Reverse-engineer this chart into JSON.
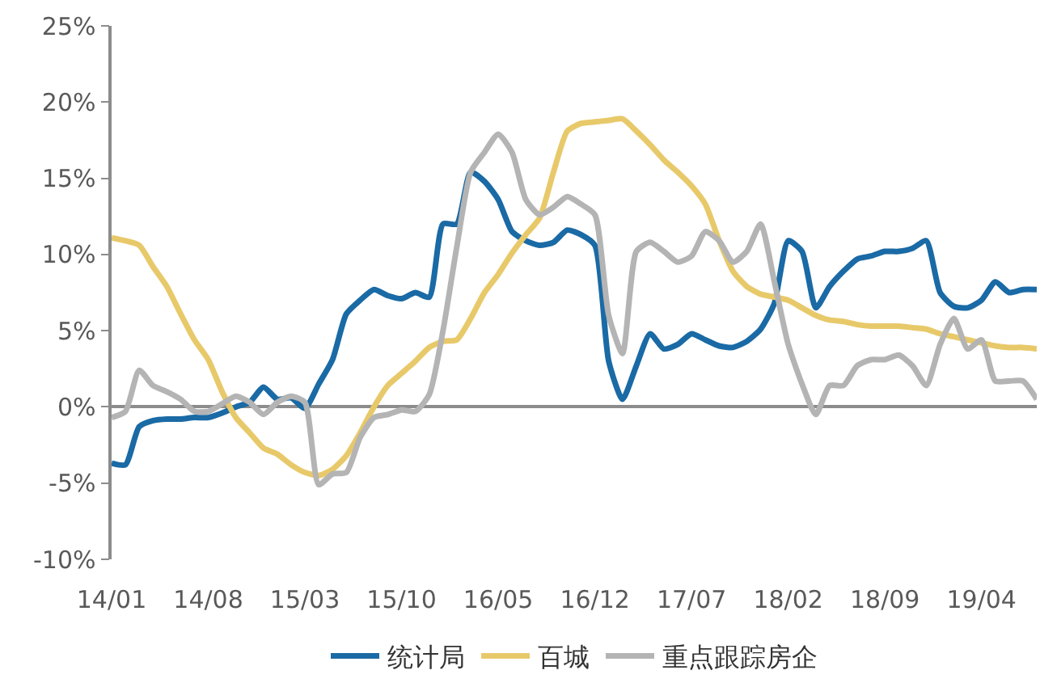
{
  "chart_data": {
    "type": "line",
    "categories": [
      "14/01",
      null,
      null,
      null,
      null,
      null,
      null,
      "14/08",
      null,
      null,
      null,
      null,
      null,
      null,
      "15/03",
      null,
      null,
      null,
      null,
      null,
      null,
      "15/10",
      null,
      null,
      null,
      null,
      null,
      null,
      "16/05",
      null,
      null,
      null,
      null,
      null,
      null,
      "16/12",
      null,
      null,
      null,
      null,
      null,
      null,
      "17/07",
      null,
      null,
      null,
      null,
      null,
      null,
      "18/02",
      null,
      null,
      null,
      null,
      null,
      null,
      "18/09",
      null,
      null,
      null,
      null,
      null,
      null,
      "19/04",
      null,
      null,
      null,
      null
    ],
    "series": [
      {
        "name": "统计局",
        "color": "#1a6aa5",
        "values": [
          -3.7,
          -3.8,
          -1.3,
          -0.9,
          -0.8,
          -0.8,
          -0.7,
          -0.7,
          -0.4,
          0,
          0.3,
          1.3,
          0.5,
          0.6,
          -0.1,
          1.5,
          3.1,
          6.1,
          7.0,
          7.7,
          7.3,
          7.1,
          7.5,
          7.2,
          12.0,
          12.0,
          15.4,
          14.8,
          13.6,
          11.5,
          10.9,
          10.6,
          10.8,
          11.6,
          11.3,
          10.6,
          3.0,
          0.5,
          2.7,
          4.8,
          3.8,
          4.1,
          4.8,
          4.4,
          4.0,
          3.9,
          4.3,
          5.1,
          6.8,
          10.9,
          10.2,
          6.5,
          7.9,
          8.9,
          9.7,
          9.9,
          10.2,
          10.2,
          10.4,
          10.9,
          7.5,
          6.6,
          6.5,
          7.0,
          8.2,
          7.5,
          7.7,
          7.7
        ]
      },
      {
        "name": "百城",
        "color": "#e8c96a",
        "values": [
          11.1,
          10.9,
          10.6,
          9.2,
          7.9,
          6.1,
          4.4,
          3.1,
          1.0,
          -0.7,
          -1.7,
          -2.7,
          -3.1,
          -3.8,
          -4.3,
          -4.5,
          -4.1,
          -3.2,
          -1.7,
          0,
          1.4,
          2.2,
          3.0,
          3.9,
          4.3,
          4.4,
          5.8,
          7.5,
          8.7,
          10.1,
          11.3,
          12.4,
          15.4,
          18.1,
          18.6,
          18.7,
          18.8,
          18.9,
          18.1,
          17.2,
          16.2,
          15.4,
          14.5,
          13.3,
          10.9,
          8.9,
          7.9,
          7.4,
          7.2,
          7.0,
          6.5,
          6.0,
          5.7,
          5.6,
          5.4,
          5.3,
          5.3,
          5.3,
          5.2,
          5.1,
          4.8,
          4.6,
          4.4,
          4.2,
          4.0,
          3.9,
          3.9,
          3.8
        ]
      },
      {
        "name": "重点跟踪房企",
        "color": "#b4b4b4",
        "values": [
          -0.7,
          -0.3,
          2.4,
          1.4,
          1.0,
          0.5,
          -0.3,
          -0.3,
          0.2,
          0.7,
          0.3,
          -0.5,
          0.3,
          0.7,
          0.3,
          -5.1,
          -4.4,
          -4.3,
          -2.0,
          -0.7,
          -0.5,
          -0.2,
          -0.3,
          0.8,
          5.0,
          10.5,
          15.4,
          16.7,
          17.9,
          16.7,
          13.6,
          12.6,
          13.1,
          13.8,
          13.3,
          12.6,
          6.0,
          3.5,
          10.2,
          10.8,
          10.2,
          9.5,
          9.9,
          11.5,
          10.9,
          9.5,
          10.2,
          12.0,
          8.2,
          4.1,
          1.5,
          -0.5,
          1.4,
          1.4,
          2.7,
          3.1,
          3.1,
          3.4,
          2.7,
          1.4,
          4.1,
          5.8,
          3.8,
          4.4,
          1.7,
          1.7,
          1.7,
          0.5
        ]
      }
    ],
    "ylim": [
      -10,
      25
    ],
    "yticks": [
      {
        "value": -10,
        "label": "-10%"
      },
      {
        "value": -5,
        "label": "-5%"
      },
      {
        "value": 0,
        "label": "0%"
      },
      {
        "value": 5,
        "label": "5%"
      },
      {
        "value": 10,
        "label": "10%"
      },
      {
        "value": 15,
        "label": "15%"
      },
      {
        "value": 20,
        "label": "20%"
      },
      {
        "value": 25,
        "label": "25%"
      }
    ],
    "legend": "bottom",
    "marker": "none",
    "line_style": "solid"
  }
}
